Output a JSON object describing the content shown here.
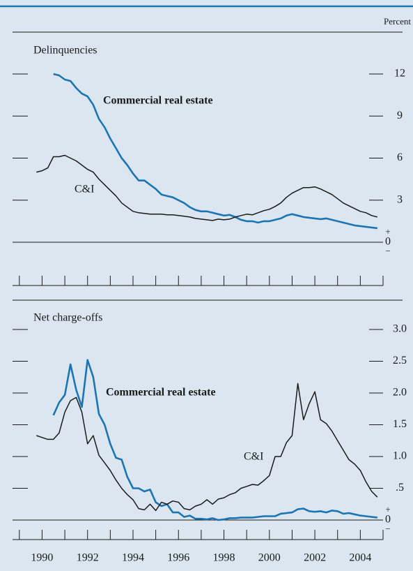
{
  "chart_data": [
    {
      "type": "line",
      "title": "Delinquencies",
      "y_axis_label": "Percent",
      "x": [
        1989.75,
        1990,
        1990.25,
        1990.5,
        1990.75,
        1991,
        1991.25,
        1991.5,
        1991.75,
        1992,
        1992.25,
        1992.5,
        1992.75,
        1993,
        1993.25,
        1993.5,
        1993.75,
        1994,
        1994.25,
        1994.5,
        1994.75,
        1995,
        1995.25,
        1995.5,
        1995.75,
        1996,
        1996.25,
        1996.5,
        1996.75,
        1997,
        1997.25,
        1997.5,
        1997.75,
        1998,
        1998.25,
        1998.5,
        1998.75,
        1999,
        1999.25,
        1999.5,
        1999.75,
        2000,
        2000.25,
        2000.5,
        2000.75,
        2001,
        2001.25,
        2001.5,
        2001.75,
        2002,
        2002.25,
        2002.5,
        2002.75,
        2003,
        2003.25,
        2003.5,
        2003.75,
        2004,
        2004.25,
        2004.5,
        2004.75
      ],
      "series": [
        {
          "name": "Commercial real estate",
          "color": "#1b75b3",
          "values": [
            null,
            null,
            null,
            12.0,
            11.9,
            11.6,
            11.5,
            11.0,
            10.6,
            10.4,
            9.8,
            8.8,
            8.2,
            7.4,
            6.7,
            6.0,
            5.5,
            4.9,
            4.4,
            4.4,
            4.1,
            3.8,
            3.4,
            3.3,
            3.2,
            3.0,
            2.8,
            2.5,
            2.3,
            2.2,
            2.2,
            2.1,
            2.0,
            1.9,
            1.95,
            1.8,
            1.6,
            1.5,
            1.5,
            1.4,
            1.5,
            1.5,
            1.6,
            1.7,
            1.9,
            2.0,
            1.9,
            1.8,
            1.75,
            1.7,
            1.65,
            1.7,
            1.6,
            1.5,
            1.4,
            1.3,
            1.2,
            1.15,
            1.1,
            1.05,
            1.0
          ]
        },
        {
          "name": "C&I",
          "color": "#1a1a1a",
          "values": [
            5.0,
            5.1,
            5.3,
            6.1,
            6.1,
            6.2,
            6.0,
            5.8,
            5.5,
            5.2,
            5.0,
            4.5,
            4.1,
            3.7,
            3.3,
            2.8,
            2.5,
            2.2,
            2.1,
            2.05,
            2.0,
            2.0,
            2.0,
            1.95,
            1.95,
            1.9,
            1.85,
            1.8,
            1.7,
            1.65,
            1.6,
            1.55,
            1.65,
            1.6,
            1.65,
            1.8,
            1.9,
            2.0,
            1.95,
            2.1,
            2.25,
            2.35,
            2.55,
            2.8,
            3.2,
            3.5,
            3.7,
            3.9,
            3.9,
            3.95,
            3.8,
            3.6,
            3.4,
            3.1,
            2.8,
            2.6,
            2.4,
            2.2,
            2.1,
            1.9,
            1.8
          ]
        }
      ],
      "xlim": [
        1988.7,
        2005
      ],
      "minor_xticks": [
        1989,
        1990,
        1991,
        1992,
        1993,
        1994,
        1995,
        1996,
        1997,
        1998,
        1999,
        2000,
        2001,
        2002,
        2003,
        2004,
        2005
      ],
      "ylim": [
        0,
        12
      ],
      "yticks": [
        0,
        3,
        6,
        9,
        12
      ]
    },
    {
      "type": "line",
      "title": "Net charge-offs",
      "x": [
        1989.75,
        1990,
        1990.25,
        1990.5,
        1990.75,
        1991,
        1991.25,
        1991.5,
        1991.75,
        1992,
        1992.25,
        1992.5,
        1992.75,
        1993,
        1993.25,
        1993.5,
        1993.75,
        1994,
        1994.25,
        1994.5,
        1994.75,
        1995,
        1995.25,
        1995.5,
        1995.75,
        1996,
        1996.25,
        1996.5,
        1996.75,
        1997,
        1997.25,
        1997.5,
        1997.75,
        1998,
        1998.25,
        1998.5,
        1998.75,
        1999,
        1999.25,
        1999.5,
        1999.75,
        2000,
        2000.25,
        2000.5,
        2000.75,
        2001,
        2001.25,
        2001.5,
        2001.75,
        2002,
        2002.25,
        2002.5,
        2002.75,
        2003,
        2003.25,
        2003.5,
        2003.75,
        2004,
        2004.25,
        2004.5,
        2004.75
      ],
      "series": [
        {
          "name": "Commercial real estate",
          "color": "#1b75b3",
          "values": [
            null,
            null,
            null,
            1.65,
            1.85,
            1.97,
            2.45,
            2.05,
            1.78,
            2.52,
            2.25,
            1.67,
            1.5,
            1.2,
            0.98,
            0.95,
            0.68,
            0.5,
            0.5,
            0.45,
            0.48,
            0.28,
            0.22,
            0.25,
            0.12,
            0.12,
            0.05,
            0.07,
            0.02,
            0.02,
            0.01,
            0.03,
            0.0,
            0.01,
            0.03,
            0.03,
            0.04,
            0.04,
            0.04,
            0.05,
            0.06,
            0.06,
            0.06,
            0.1,
            0.11,
            0.12,
            0.17,
            0.18,
            0.14,
            0.13,
            0.14,
            0.12,
            0.15,
            0.14,
            0.1,
            0.11,
            0.09,
            0.07,
            0.06,
            0.05,
            0.04
          ]
        },
        {
          "name": "C&I",
          "color": "#1a1a1a",
          "values": [
            1.33,
            1.3,
            1.27,
            1.27,
            1.37,
            1.7,
            1.88,
            1.93,
            1.7,
            1.2,
            1.33,
            1.02,
            0.9,
            0.78,
            0.63,
            0.5,
            0.4,
            0.32,
            0.18,
            0.16,
            0.25,
            0.15,
            0.28,
            0.25,
            0.3,
            0.28,
            0.18,
            0.16,
            0.22,
            0.25,
            0.32,
            0.25,
            0.33,
            0.35,
            0.4,
            0.43,
            0.5,
            0.53,
            0.56,
            0.55,
            0.62,
            0.7,
            1.0,
            1.0,
            1.22,
            1.33,
            2.15,
            1.58,
            1.83,
            2.02,
            1.58,
            1.52,
            1.4,
            1.25,
            1.1,
            0.95,
            0.88,
            0.78,
            0.6,
            0.45,
            0.36
          ]
        }
      ],
      "xlim": [
        1988.7,
        2005
      ],
      "xticks": [
        1990,
        1992,
        1994,
        1996,
        1998,
        2000,
        2002,
        2004
      ],
      "minor_xticks": [
        1989,
        1990,
        1991,
        1992,
        1993,
        1994,
        1995,
        1996,
        1997,
        1998,
        1999,
        2000,
        2001,
        2002,
        2003,
        2004,
        2005
      ],
      "ylim": [
        0,
        3
      ],
      "yticks": [
        0,
        {
          "value": 0.5,
          "label": ".5"
        },
        {
          "value": 1,
          "label": "1.0"
        },
        1.5,
        {
          "value": 2,
          "label": "2.0"
        },
        2.5,
        {
          "value": 3,
          "label": "3.0"
        }
      ]
    }
  ]
}
